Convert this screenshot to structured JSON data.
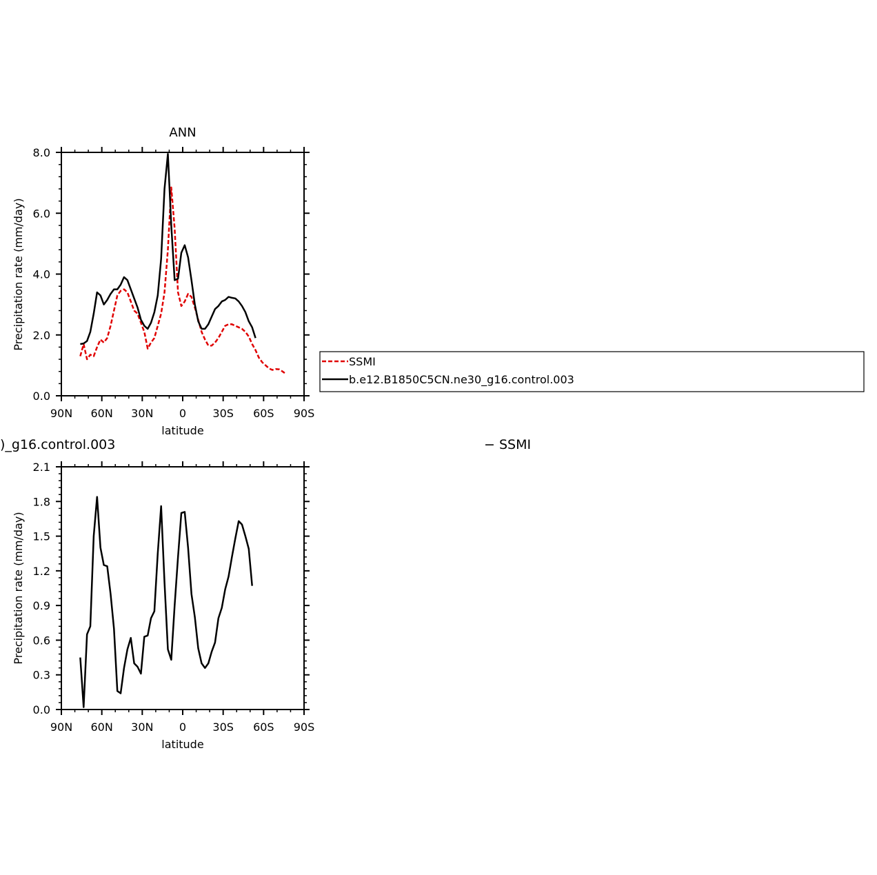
{
  "chart_data": [
    {
      "type": "line",
      "title": "ANN",
      "xlabel": "latitude",
      "ylabel": "Precipitation rate (mm/day)",
      "xlim": [
        90,
        -90
      ],
      "ylim": [
        0,
        8
      ],
      "xticks": [
        90,
        60,
        30,
        0,
        -30,
        -60,
        -90
      ],
      "xtick_labels": [
        "90N",
        "60N",
        "30N",
        "0",
        "30S",
        "60S",
        "90S"
      ],
      "yticks": [
        0,
        2,
        4,
        6,
        8
      ],
      "ytick_labels": [
        "0.0",
        "2.0",
        "4.0",
        "6.0",
        "8.0"
      ],
      "legend_placement": "right",
      "series": [
        {
          "name": "SSMI",
          "color": "#e00000",
          "dash": "dashed",
          "points": [
            [
              76,
              1.3
            ],
            [
              73.5,
              1.7
            ],
            [
              71,
              1.2
            ],
            [
              68.5,
              1.35
            ],
            [
              66,
              1.3
            ],
            [
              63.5,
              1.6
            ],
            [
              61,
              1.85
            ],
            [
              58.5,
              1.75
            ],
            [
              56,
              1.9
            ],
            [
              53.5,
              2.3
            ],
            [
              51,
              2.8
            ],
            [
              48.5,
              3.3
            ],
            [
              46,
              3.45
            ],
            [
              43.5,
              3.5
            ],
            [
              41,
              3.4
            ],
            [
              38.5,
              3.1
            ],
            [
              36,
              2.8
            ],
            [
              33.5,
              2.7
            ],
            [
              31,
              2.4
            ],
            [
              28.5,
              2.1
            ],
            [
              26,
              1.55
            ],
            [
              23.5,
              1.75
            ],
            [
              21,
              1.9
            ],
            [
              18.5,
              2.3
            ],
            [
              16,
              2.7
            ],
            [
              13.5,
              3.4
            ],
            [
              11,
              4.8
            ],
            [
              8.5,
              6.85
            ],
            [
              6,
              5.5
            ],
            [
              3.5,
              3.4
            ],
            [
              1,
              2.95
            ],
            [
              -1.5,
              3.1
            ],
            [
              -4,
              3.35
            ],
            [
              -6.5,
              3.25
            ],
            [
              -9,
              2.9
            ],
            [
              -11.5,
              2.5
            ],
            [
              -14,
              2.1
            ],
            [
              -16.5,
              1.85
            ],
            [
              -19,
              1.65
            ],
            [
              -21.5,
              1.65
            ],
            [
              -24,
              1.75
            ],
            [
              -26.5,
              1.9
            ],
            [
              -29,
              2.1
            ],
            [
              -31.5,
              2.3
            ],
            [
              -34,
              2.35
            ],
            [
              -36.5,
              2.35
            ],
            [
              -39,
              2.3
            ],
            [
              -41.5,
              2.25
            ],
            [
              -44,
              2.2
            ],
            [
              -46.5,
              2.1
            ],
            [
              -49,
              1.95
            ],
            [
              -51.5,
              1.7
            ],
            [
              -54,
              1.5
            ],
            [
              -56.5,
              1.25
            ],
            [
              -59,
              1.1
            ],
            [
              -61.5,
              1.0
            ],
            [
              -64,
              0.9
            ],
            [
              -66.5,
              0.85
            ],
            [
              -69,
              0.88
            ],
            [
              -71.5,
              0.87
            ],
            [
              -74,
              0.8
            ],
            [
              -76.5,
              0.72
            ]
          ]
        },
        {
          "name": "b.e12.B1850C5CN.ne30_g16.control.003",
          "color": "#000000",
          "dash": "solid",
          "points": [
            [
              76,
              1.7
            ],
            [
              73.5,
              1.72
            ],
            [
              71,
              1.8
            ],
            [
              68.5,
              2.1
            ],
            [
              66,
              2.7
            ],
            [
              63.5,
              3.4
            ],
            [
              61,
              3.3
            ],
            [
              58.5,
              3.0
            ],
            [
              56,
              3.15
            ],
            [
              53.5,
              3.35
            ],
            [
              51,
              3.5
            ],
            [
              48.5,
              3.5
            ],
            [
              46,
              3.65
            ],
            [
              43.5,
              3.9
            ],
            [
              41,
              3.8
            ],
            [
              38.5,
              3.5
            ],
            [
              36,
              3.2
            ],
            [
              33.5,
              2.9
            ],
            [
              31,
              2.5
            ],
            [
              28.5,
              2.3
            ],
            [
              26,
              2.2
            ],
            [
              23.5,
              2.4
            ],
            [
              21,
              2.75
            ],
            [
              18.5,
              3.3
            ],
            [
              16,
              4.5
            ],
            [
              13.5,
              6.8
            ],
            [
              11,
              7.95
            ],
            [
              8.5,
              5.6
            ],
            [
              6,
              3.8
            ],
            [
              3.5,
              3.85
            ],
            [
              1,
              4.7
            ],
            [
              -1.5,
              4.95
            ],
            [
              -4,
              4.55
            ],
            [
              -6.5,
              3.8
            ],
            [
              -9,
              3.0
            ],
            [
              -11.5,
              2.45
            ],
            [
              -14,
              2.2
            ],
            [
              -16.5,
              2.2
            ],
            [
              -19,
              2.35
            ],
            [
              -21.5,
              2.6
            ],
            [
              -24,
              2.85
            ],
            [
              -26.5,
              2.95
            ],
            [
              -29,
              3.1
            ],
            [
              -31.5,
              3.15
            ],
            [
              -34,
              3.25
            ],
            [
              -36.5,
              3.22
            ],
            [
              -39,
              3.2
            ],
            [
              -41.5,
              3.1
            ],
            [
              -44,
              2.95
            ],
            [
              -46.5,
              2.75
            ],
            [
              -49,
              2.45
            ],
            [
              -51.5,
              2.25
            ],
            [
              -54,
              1.9
            ]
          ]
        }
      ]
    },
    {
      "type": "line",
      "title": ")_g16.control.003",
      "title_right": "− SSMI",
      "xlabel": "latitude",
      "ylabel": "Precipitation rate (mm/day)",
      "xlim": [
        90,
        -90
      ],
      "ylim": [
        0,
        2.1
      ],
      "xticks": [
        90,
        60,
        30,
        0,
        -30,
        -60,
        -90
      ],
      "xtick_labels": [
        "90N",
        "60N",
        "30N",
        "0",
        "30S",
        "60S",
        "90S"
      ],
      "yticks": [
        0,
        0.3,
        0.6,
        0.9,
        1.2,
        1.5,
        1.8,
        2.1
      ],
      "ytick_labels": [
        "0.0",
        "0.3",
        "0.6",
        "0.9",
        "1.2",
        "1.5",
        "1.8",
        "2.1"
      ],
      "series": [
        {
          "color": "#000000",
          "dash": "solid",
          "points": [
            [
              76,
              0.45
            ],
            [
              73.5,
              0.02
            ],
            [
              71,
              0.65
            ],
            [
              68.5,
              0.72
            ],
            [
              66,
              1.5
            ],
            [
              63.5,
              1.84
            ],
            [
              61,
              1.4
            ],
            [
              58.5,
              1.25
            ],
            [
              56,
              1.24
            ],
            [
              53.5,
              1.0
            ],
            [
              51,
              0.7
            ],
            [
              48.5,
              0.16
            ],
            [
              46,
              0.14
            ],
            [
              43.5,
              0.36
            ],
            [
              41,
              0.52
            ],
            [
              38.5,
              0.62
            ],
            [
              36,
              0.4
            ],
            [
              33.5,
              0.37
            ],
            [
              31,
              0.31
            ],
            [
              28.5,
              0.63
            ],
            [
              26,
              0.64
            ],
            [
              23.5,
              0.79
            ],
            [
              21,
              0.85
            ],
            [
              18.5,
              1.35
            ],
            [
              16,
              1.76
            ],
            [
              13.5,
              1.1
            ],
            [
              11,
              0.52
            ],
            [
              8.5,
              0.43
            ],
            [
              6,
              0.9
            ],
            [
              3.5,
              1.32
            ],
            [
              1,
              1.7
            ],
            [
              -1.5,
              1.71
            ],
            [
              -4,
              1.4
            ],
            [
              -6.5,
              1.0
            ],
            [
              -9,
              0.8
            ],
            [
              -11.5,
              0.53
            ],
            [
              -14,
              0.4
            ],
            [
              -16.5,
              0.36
            ],
            [
              -19,
              0.4
            ],
            [
              -21.5,
              0.5
            ],
            [
              -24,
              0.58
            ],
            [
              -26.5,
              0.79
            ],
            [
              -29,
              0.88
            ],
            [
              -31.5,
              1.04
            ],
            [
              -34,
              1.15
            ],
            [
              -36.5,
              1.32
            ],
            [
              -39,
              1.48
            ],
            [
              -41.5,
              1.63
            ],
            [
              -44,
              1.6
            ],
            [
              -46.5,
              1.5
            ],
            [
              -49,
              1.39
            ],
            [
              -51.5,
              1.07
            ]
          ]
        }
      ]
    }
  ]
}
